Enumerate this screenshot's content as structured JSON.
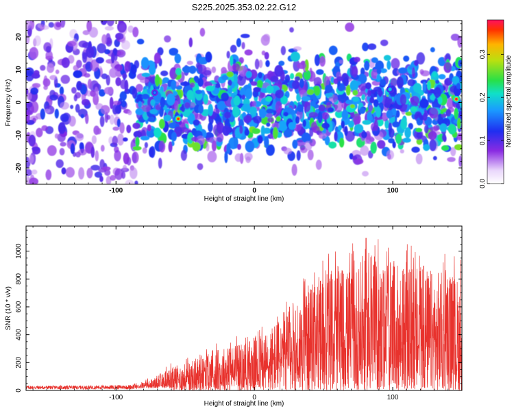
{
  "title": "S225.2025.353.02.22.G12",
  "chart_data": [
    {
      "type": "heatmap",
      "name": "spectrogram",
      "xlabel": "Height of straight line (km)",
      "ylabel": "Frequency (Hz)",
      "xlim": [
        -165,
        150
      ],
      "ylim": [
        -25,
        25
      ],
      "x_ticks": [
        -100,
        0,
        100
      ],
      "y_ticks": [
        -20,
        -10,
        0,
        10,
        20
      ],
      "colorbar": {
        "label": "Normalized spectral amplitude",
        "range": [
          0.0,
          0.38
        ],
        "ticks": [
          0.0,
          0.1,
          0.2,
          0.3
        ],
        "tick_labels": [
          "0.0",
          "0.1",
          "0.2",
          "0.3"
        ]
      },
      "peak_amplitude": 0.38,
      "peaks": [
        {
          "x": -55,
          "y": -5,
          "value": 0.36
        },
        {
          "x": 146,
          "y": 1,
          "value": 0.37
        },
        {
          "x": 98,
          "y": 4,
          "value": 0.2
        },
        {
          "x": -72,
          "y": 3,
          "value": 0.16
        }
      ]
    },
    {
      "type": "line",
      "name": "snr",
      "xlabel": "Height of straight line (km)",
      "ylabel": "SNR (10 * v/v)",
      "xlim": [
        -165,
        150
      ],
      "ylim": [
        0,
        1180
      ],
      "x_ticks": [
        -100,
        0,
        100
      ],
      "y_ticks": [
        0,
        200,
        400,
        600,
        800,
        1000
      ],
      "series_color": "#e8322d",
      "envelope": {
        "x": [
          -165,
          -130,
          -90,
          -80,
          -70,
          -60,
          -50,
          -40,
          -30,
          -20,
          -10,
          0,
          10,
          20,
          30,
          40,
          50,
          60,
          70,
          80,
          90,
          100,
          110,
          120,
          130,
          140,
          150
        ],
        "y": [
          35,
          35,
          40,
          70,
          130,
          200,
          230,
          280,
          330,
          380,
          400,
          460,
          520,
          650,
          780,
          900,
          1000,
          1050,
          1050,
          1100,
          1100,
          1100,
          1050,
          1050,
          1020,
          1000,
          950
        ]
      }
    }
  ]
}
